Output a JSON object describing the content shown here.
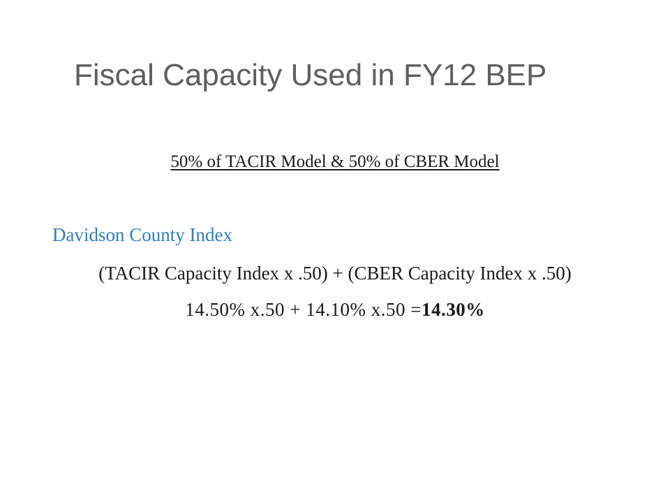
{
  "slide": {
    "title": "Fiscal Capacity Used in FY12 BEP",
    "subheading": "50% of TACIR Model & 50% of CBER Model",
    "index_label": "Davidson County Index",
    "formula": "(TACIR Capacity Index x .50) + (CBER Capacity Index x .50)",
    "calculation": {
      "expression": "14.50% x.50 + 14.10% x.50 =",
      "result": "14.30%"
    }
  },
  "colors": {
    "title": "#5f5f5f",
    "body_text": "#1a1a1a",
    "accent": "#2f7fbf",
    "background": "#ffffff"
  }
}
